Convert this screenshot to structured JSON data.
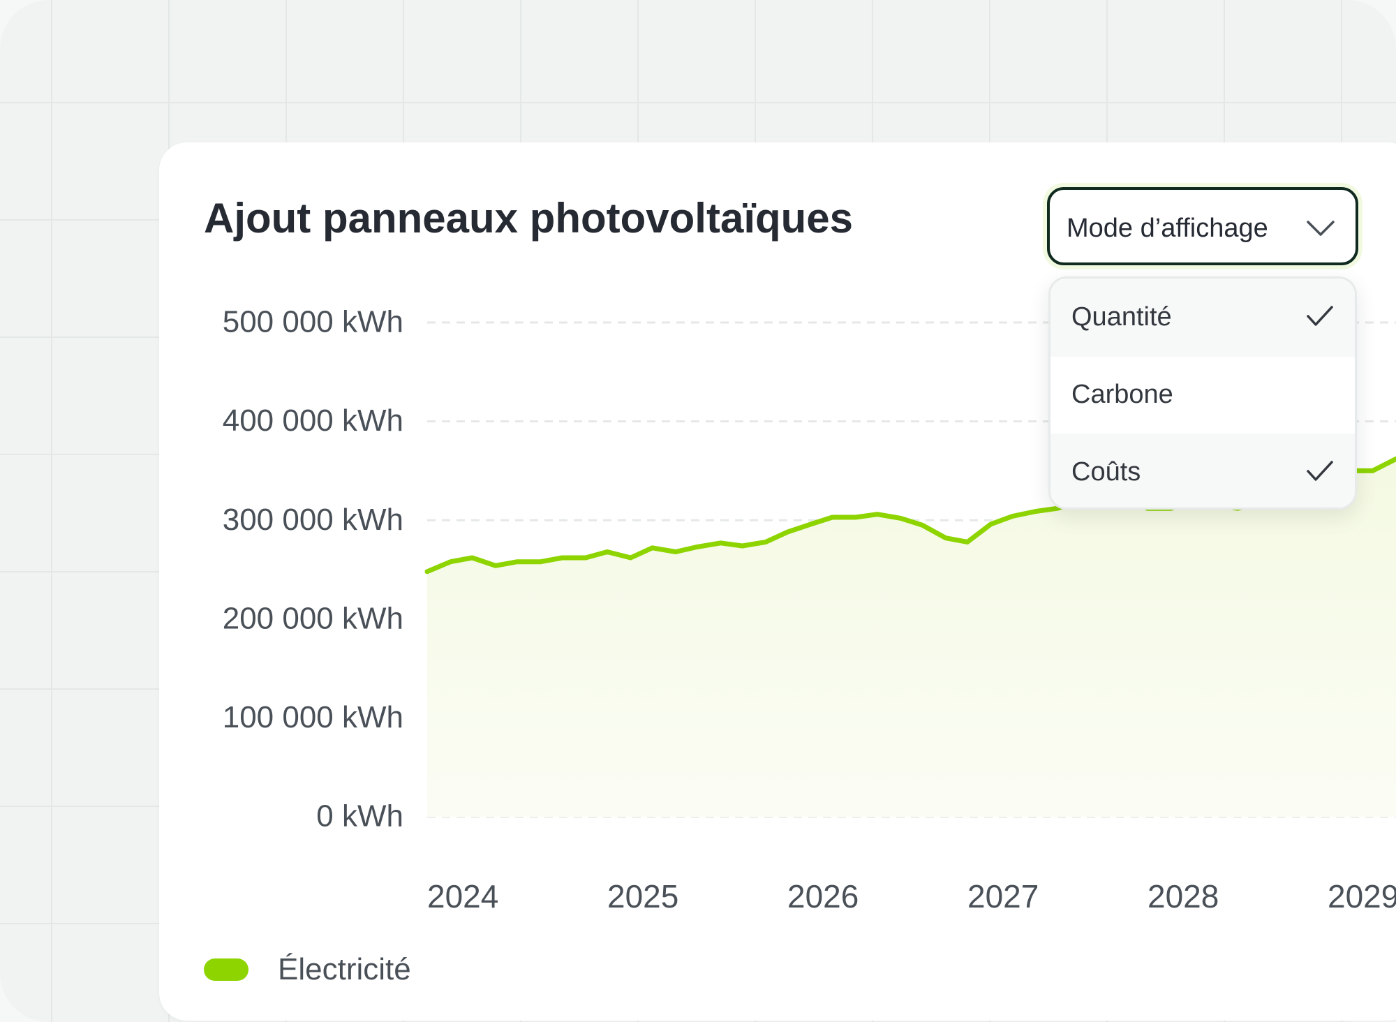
{
  "card": {
    "title": "Ajout panneaux photovoltaïques"
  },
  "display_mode": {
    "label": "Mode d’affichage",
    "options": [
      {
        "label": "Quantité",
        "checked": true
      },
      {
        "label": "Carbone",
        "checked": false
      },
      {
        "label": "Coûts",
        "checked": true
      }
    ]
  },
  "colors": {
    "accent": "#8dd400",
    "fill": "#f7fbe9",
    "gridline": "#e6e8e8",
    "border": "#102a1f",
    "text": "#262a33"
  },
  "chart_data": {
    "type": "area",
    "title": "Ajout panneaux photovoltaïques",
    "ylim": [
      0,
      500000
    ],
    "y_ticks": [
      "0 kWh",
      "100 000 kWh",
      "200 000 kWh",
      "300 000 kWh",
      "400 000 kWh",
      "500 000 kWh"
    ],
    "y_tick_values": [
      0,
      100000,
      200000,
      300000,
      400000,
      500000
    ],
    "x_ticks": [
      "2024",
      "2025",
      "2026",
      "2027",
      "2028",
      "2029"
    ],
    "x_tick_values": [
      2024,
      2025,
      2026,
      2027,
      2028,
      2029
    ],
    "xlim": [
      2024,
      2029.4
    ],
    "grid": true,
    "legend_position": "bottom-left",
    "series": [
      {
        "name": "Électricité",
        "x": [
          2024.0,
          2024.13,
          2024.25,
          2024.38,
          2024.5,
          2024.63,
          2024.75,
          2024.88,
          2025.0,
          2025.13,
          2025.25,
          2025.38,
          2025.5,
          2025.63,
          2025.75,
          2025.88,
          2026.0,
          2026.13,
          2026.25,
          2026.38,
          2026.5,
          2026.63,
          2026.75,
          2026.88,
          2027.0,
          2027.13,
          2027.25,
          2027.38,
          2027.5,
          2027.63,
          2027.75,
          2027.88,
          2028.0,
          2028.13,
          2028.25,
          2028.38,
          2028.5,
          2028.63,
          2028.75,
          2028.88,
          2029.0,
          2029.13,
          2029.25,
          2029.38
        ],
        "values": [
          248000,
          258000,
          262000,
          254000,
          258000,
          258000,
          262000,
          262000,
          268000,
          262000,
          272000,
          268000,
          273000,
          277000,
          274000,
          278000,
          288000,
          296000,
          303000,
          303000,
          306000,
          302000,
          295000,
          282000,
          278000,
          296000,
          304000,
          309000,
          312000,
          320000,
          318000,
          325000,
          312000,
          312000,
          320000,
          316000,
          312000,
          318000,
          326000,
          340000,
          350000,
          350000,
          350000,
          362000
        ]
      }
    ]
  }
}
